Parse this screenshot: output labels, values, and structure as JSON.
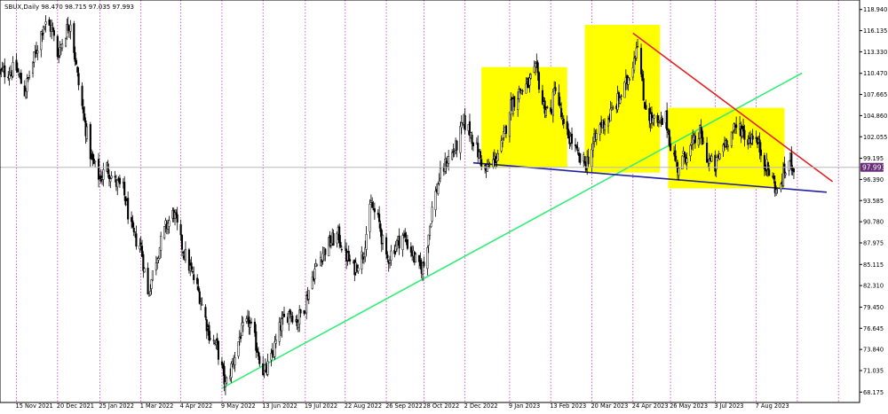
{
  "header": {
    "symbol_line": "SBUX,Daily  98.470  98.715  97.035  97.993"
  },
  "chart_data": {
    "type": "candlestick",
    "symbol": "SBUX",
    "timeframe": "Daily",
    "ohlc_header": {
      "open": 98.47,
      "high": 98.715,
      "low": 97.035,
      "close": 97.993
    },
    "last_price_label": "97.993",
    "ylim": [
      66.8,
      120.2
    ],
    "y_ticks": [
      "118.940",
      "116.135",
      "113.330",
      "110.470",
      "107.665",
      "104.860",
      "102.055",
      "99.195",
      "96.390",
      "93.585",
      "90.780",
      "87.975",
      "85.115",
      "82.310",
      "79.450",
      "76.645",
      "73.840",
      "71.035",
      "68.175"
    ],
    "x_ticks": [
      "15 Nov 2021",
      "20 Dec 2021",
      "25 Jan 2022",
      "1 Mar 2022",
      "4 Apr 2022",
      "9 May 2022",
      "13 Jun 2022",
      "19 Jul 2022",
      "22 Aug 2022",
      "26 Sep 2022",
      "28 Oct 2022",
      "2 Dec 2022",
      "9 Jan 2023",
      "13 Feb 2023",
      "20 Mar 2023",
      "24 Apr 2023",
      "26 May 2023",
      "3 Jul 2023",
      "7 Aug 2023"
    ],
    "x_range": [
      "2021-11-01",
      "2023-11-03"
    ],
    "price_path": [
      [
        "2021-11-01",
        110.5
      ],
      [
        "2021-11-15",
        111.0
      ],
      [
        "2021-11-22",
        108.0
      ],
      [
        "2021-12-01",
        113.0
      ],
      [
        "2021-12-08",
        117.0
      ],
      [
        "2021-12-15",
        116.5
      ],
      [
        "2021-12-20",
        113.0
      ],
      [
        "2021-12-27",
        116.0
      ],
      [
        "2021-12-31",
        117.5
      ],
      [
        "2022-01-06",
        110.0
      ],
      [
        "2022-01-12",
        104.0
      ],
      [
        "2022-01-18",
        99.0
      ],
      [
        "2022-01-25",
        96.5
      ],
      [
        "2022-01-31",
        98.0
      ],
      [
        "2022-02-07",
        96.0
      ],
      [
        "2022-02-14",
        95.0
      ],
      [
        "2022-02-22",
        89.0
      ],
      [
        "2022-03-01",
        87.5
      ],
      [
        "2022-03-07",
        81.0
      ],
      [
        "2022-03-14",
        86.0
      ],
      [
        "2022-03-22",
        90.0
      ],
      [
        "2022-03-29",
        92.0
      ],
      [
        "2022-04-04",
        88.0
      ],
      [
        "2022-04-12",
        84.5
      ],
      [
        "2022-04-20",
        81.0
      ],
      [
        "2022-04-28",
        76.0
      ],
      [
        "2022-05-05",
        74.0
      ],
      [
        "2022-05-12",
        69.0
      ],
      [
        "2022-05-18",
        72.0
      ],
      [
        "2022-05-25",
        76.0
      ],
      [
        "2022-06-01",
        77.5
      ],
      [
        "2022-06-08",
        74.0
      ],
      [
        "2022-06-14",
        70.5
      ],
      [
        "2022-06-20",
        72.5
      ],
      [
        "2022-06-28",
        77.0
      ],
      [
        "2022-07-06",
        79.0
      ],
      [
        "2022-07-12",
        77.5
      ],
      [
        "2022-07-19",
        80.0
      ],
      [
        "2022-07-26",
        84.0
      ],
      [
        "2022-08-02",
        86.5
      ],
      [
        "2022-08-09",
        88.0
      ],
      [
        "2022-08-16",
        89.0
      ],
      [
        "2022-08-22",
        86.5
      ],
      [
        "2022-08-29",
        84.5
      ],
      [
        "2022-09-06",
        86.5
      ],
      [
        "2022-09-13",
        93.0
      ],
      [
        "2022-09-20",
        90.5
      ],
      [
        "2022-09-26",
        85.5
      ],
      [
        "2022-10-03",
        87.5
      ],
      [
        "2022-10-10",
        89.0
      ],
      [
        "2022-10-17",
        87.0
      ],
      [
        "2022-10-24",
        84.5
      ],
      [
        "2022-10-28",
        85.0
      ],
      [
        "2022-11-04",
        92.5
      ],
      [
        "2022-11-10",
        96.5
      ],
      [
        "2022-11-17",
        99.0
      ],
      [
        "2022-11-24",
        100.5
      ],
      [
        "2022-12-01",
        104.0
      ],
      [
        "2022-12-07",
        102.5
      ],
      [
        "2022-12-14",
        99.5
      ],
      [
        "2022-12-20",
        97.5
      ],
      [
        "2022-12-27",
        99.0
      ],
      [
        "2023-01-03",
        101.0
      ],
      [
        "2023-01-09",
        106.0
      ],
      [
        "2023-01-17",
        108.0
      ],
      [
        "2023-01-25",
        109.0
      ],
      [
        "2023-02-01",
        111.0
      ],
      [
        "2023-02-06",
        106.5
      ],
      [
        "2023-02-13",
        105.0
      ],
      [
        "2023-02-17",
        109.0
      ],
      [
        "2023-02-24",
        103.0
      ],
      [
        "2023-03-03",
        101.5
      ],
      [
        "2023-03-09",
        99.0
      ],
      [
        "2023-03-15",
        98.5
      ],
      [
        "2023-03-20",
        100.5
      ],
      [
        "2023-03-27",
        103.5
      ],
      [
        "2023-04-03",
        104.5
      ],
      [
        "2023-04-10",
        106.5
      ],
      [
        "2023-04-17",
        108.5
      ],
      [
        "2023-04-24",
        112.0
      ],
      [
        "2023-04-28",
        115.0
      ],
      [
        "2023-05-03",
        107.0
      ],
      [
        "2023-05-09",
        104.5
      ],
      [
        "2023-05-16",
        103.5
      ],
      [
        "2023-05-22",
        104.5
      ],
      [
        "2023-05-26",
        101.0
      ],
      [
        "2023-06-01",
        98.0
      ],
      [
        "2023-06-07",
        99.5
      ],
      [
        "2023-06-14",
        101.0
      ],
      [
        "2023-06-20",
        102.5
      ],
      [
        "2023-06-27",
        99.0
      ],
      [
        "2023-07-03",
        98.0
      ],
      [
        "2023-07-10",
        101.0
      ],
      [
        "2023-07-17",
        102.5
      ],
      [
        "2023-07-24",
        103.5
      ],
      [
        "2023-07-31",
        101.5
      ],
      [
        "2023-08-04",
        102.5
      ],
      [
        "2023-08-10",
        100.5
      ],
      [
        "2023-08-16",
        98.0
      ],
      [
        "2023-08-22",
        96.0
      ],
      [
        "2023-08-25",
        94.5
      ],
      [
        "2023-08-30",
        97.0
      ],
      [
        "2023-09-05",
        99.0
      ],
      [
        "2023-09-08",
        98.0
      ]
    ],
    "trendlines": [
      {
        "label": "rising-support-line",
        "color": "#33ee77",
        "from": [
          "2022-05-09",
          68.7
        ],
        "to": [
          "2023-09-15",
          110.5
        ]
      },
      {
        "label": "falling-resistance-line",
        "color": "#e52222",
        "from": [
          "2023-04-24",
          115.8
        ],
        "to": [
          "2023-10-11",
          96.1
        ]
      },
      {
        "label": "neckline",
        "color": "#2020a0",
        "from": [
          "2022-12-09",
          98.6
        ],
        "to": [
          "2023-10-06",
          94.7
        ]
      }
    ],
    "highlight_boxes": [
      {
        "label": "left-shoulder",
        "color": "#ffff00",
        "from": [
          "2022-12-16",
          98.0
        ],
        "to": [
          "2023-02-27",
          111.3
        ]
      },
      {
        "label": "head",
        "color": "#ffff00",
        "from": [
          "2023-03-14",
          97.3
        ],
        "to": [
          "2023-05-17",
          116.9
        ]
      },
      {
        "label": "right-shoulder",
        "color": "#ffff00",
        "from": [
          "2023-05-24",
          95.2
        ],
        "to": [
          "2023-08-31",
          105.9
        ]
      }
    ],
    "colors": {
      "candles": "#000000",
      "separators": "#cc33cc",
      "last_price_bg": "#6a2d7a",
      "axis_text": "#000000"
    },
    "grid": false
  }
}
